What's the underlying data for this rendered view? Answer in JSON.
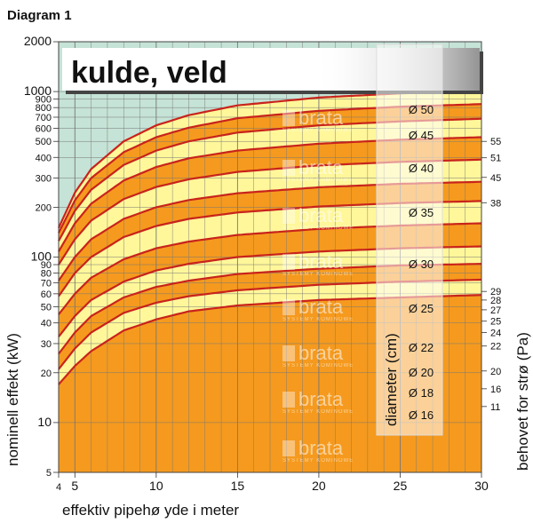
{
  "page": {
    "heading": "Diagram 1"
  },
  "chart_data": {
    "type": "area",
    "title": "kulde, veld",
    "xlabel": "effektiv  pipehø yde  i  meter",
    "ylabel": "nominell effekt (kW)",
    "y2label": "behovet for  strø (Pa)",
    "legend_title": "diameter (cm)",
    "xlim": [
      4,
      30
    ],
    "ylim": [
      5,
      2000
    ],
    "y_scale": "log",
    "x_ticks": [
      4,
      5,
      10,
      15,
      20,
      25,
      30
    ],
    "y_ticks": [
      5,
      10,
      20,
      30,
      40,
      50,
      60,
      70,
      80,
      90,
      100,
      200,
      300,
      400,
      500,
      600,
      700,
      800,
      900,
      1000,
      2000
    ],
    "y2_ticks": [
      {
        "value": 11,
        "at": 11
      },
      {
        "value": 16,
        "at": 16
      },
      {
        "value": 20,
        "at": 20
      },
      {
        "value": 22,
        "at": 22
      },
      {
        "value": 24,
        "at": 24
      },
      {
        "value": 25,
        "at": 25
      },
      {
        "value": 27,
        "at": 27
      },
      {
        "value": 28,
        "at": 28
      },
      {
        "value": 29,
        "at": 29
      },
      {
        "value": 38,
        "at": 38
      },
      {
        "value": 45,
        "at": 45
      },
      {
        "value": 51,
        "at": 51
      },
      {
        "value": 55,
        "at": 55
      }
    ],
    "grid": true,
    "series": [
      {
        "name": "Ø 16",
        "x": [
          4,
          5,
          6,
          8,
          10,
          12,
          15,
          20,
          25,
          30
        ],
        "y": [
          17,
          22,
          27,
          36,
          42,
          47,
          51,
          55,
          57,
          59
        ]
      },
      {
        "name": "Ø 18",
        "x": [
          4,
          5,
          6,
          8,
          10,
          12,
          15,
          20,
          25,
          30
        ],
        "y": [
          21,
          28,
          35,
          46,
          53,
          58,
          63,
          68,
          71,
          73
        ]
      },
      {
        "name": "Ø 20",
        "x": [
          4,
          5,
          6,
          8,
          10,
          12,
          15,
          20,
          25,
          30
        ],
        "y": [
          26,
          35,
          44,
          57,
          66,
          72,
          79,
          85,
          89,
          91
        ]
      },
      {
        "name": "Ø 22",
        "x": [
          4,
          5,
          6,
          8,
          10,
          12,
          15,
          20,
          25,
          30
        ],
        "y": [
          33,
          44,
          55,
          71,
          83,
          91,
          100,
          108,
          113,
          116
        ]
      },
      {
        "name": "Ø 25",
        "x": [
          4,
          5,
          6,
          8,
          10,
          12,
          15,
          20,
          25,
          30
        ],
        "y": [
          45,
          60,
          75,
          97,
          113,
          124,
          136,
          148,
          155,
          160
        ]
      },
      {
        "name": "Ø 30",
        "x": [
          4,
          5,
          6,
          8,
          10,
          12,
          15,
          20,
          25,
          30
        ],
        "y": [
          58,
          80,
          100,
          132,
          154,
          170,
          186,
          202,
          212,
          218
        ]
      },
      {
        "name": "Ø 35",
        "x": [
          4,
          5,
          6,
          8,
          10,
          12,
          15,
          20,
          25,
          30
        ],
        "y": [
          72,
          100,
          128,
          170,
          200,
          221,
          243,
          264,
          277,
          285
        ]
      },
      {
        "name": "Ø 40",
        "x": [
          4,
          5,
          6,
          8,
          10,
          12,
          15,
          20,
          25,
          30
        ],
        "y": [
          90,
          128,
          166,
          224,
          265,
          295,
          327,
          358,
          376,
          388
        ]
      },
      {
        "name": "Ø 45",
        "x": [
          4,
          5,
          6,
          8,
          10,
          12,
          15,
          20,
          25,
          30
        ],
        "y": [
          108,
          160,
          210,
          290,
          350,
          395,
          440,
          484,
          512,
          530
        ]
      },
      {
        "name": "Ø 50",
        "x": [
          4,
          5,
          6,
          8,
          10,
          12,
          15,
          20,
          25,
          30
        ],
        "y": [
          125,
          190,
          255,
          360,
          440,
          500,
          565,
          625,
          660,
          685
        ]
      },
      {
        "name": "",
        "x": [
          4,
          5,
          6,
          8,
          10,
          12,
          15,
          20,
          25,
          30
        ],
        "y": [
          140,
          220,
          300,
          430,
          530,
          605,
          690,
          765,
          810,
          840
        ]
      },
      {
        "name": "",
        "x": [
          4,
          5,
          6,
          8,
          10,
          12,
          15,
          20,
          25,
          30
        ],
        "y": [
          150,
          245,
          340,
          500,
          625,
          720,
          825,
          920,
          975,
          1010
        ]
      }
    ],
    "colors": {
      "yellow": "#fff79a",
      "orange": "#f59a1e",
      "curve": "#c8231c",
      "background": "#c5e3d6",
      "grid": "#777777",
      "title_box": "#ffffff",
      "dark_top": "#666666"
    },
    "watermark": {
      "brand": "brata",
      "sub": "SYSTEMY KOMINOWE"
    }
  }
}
